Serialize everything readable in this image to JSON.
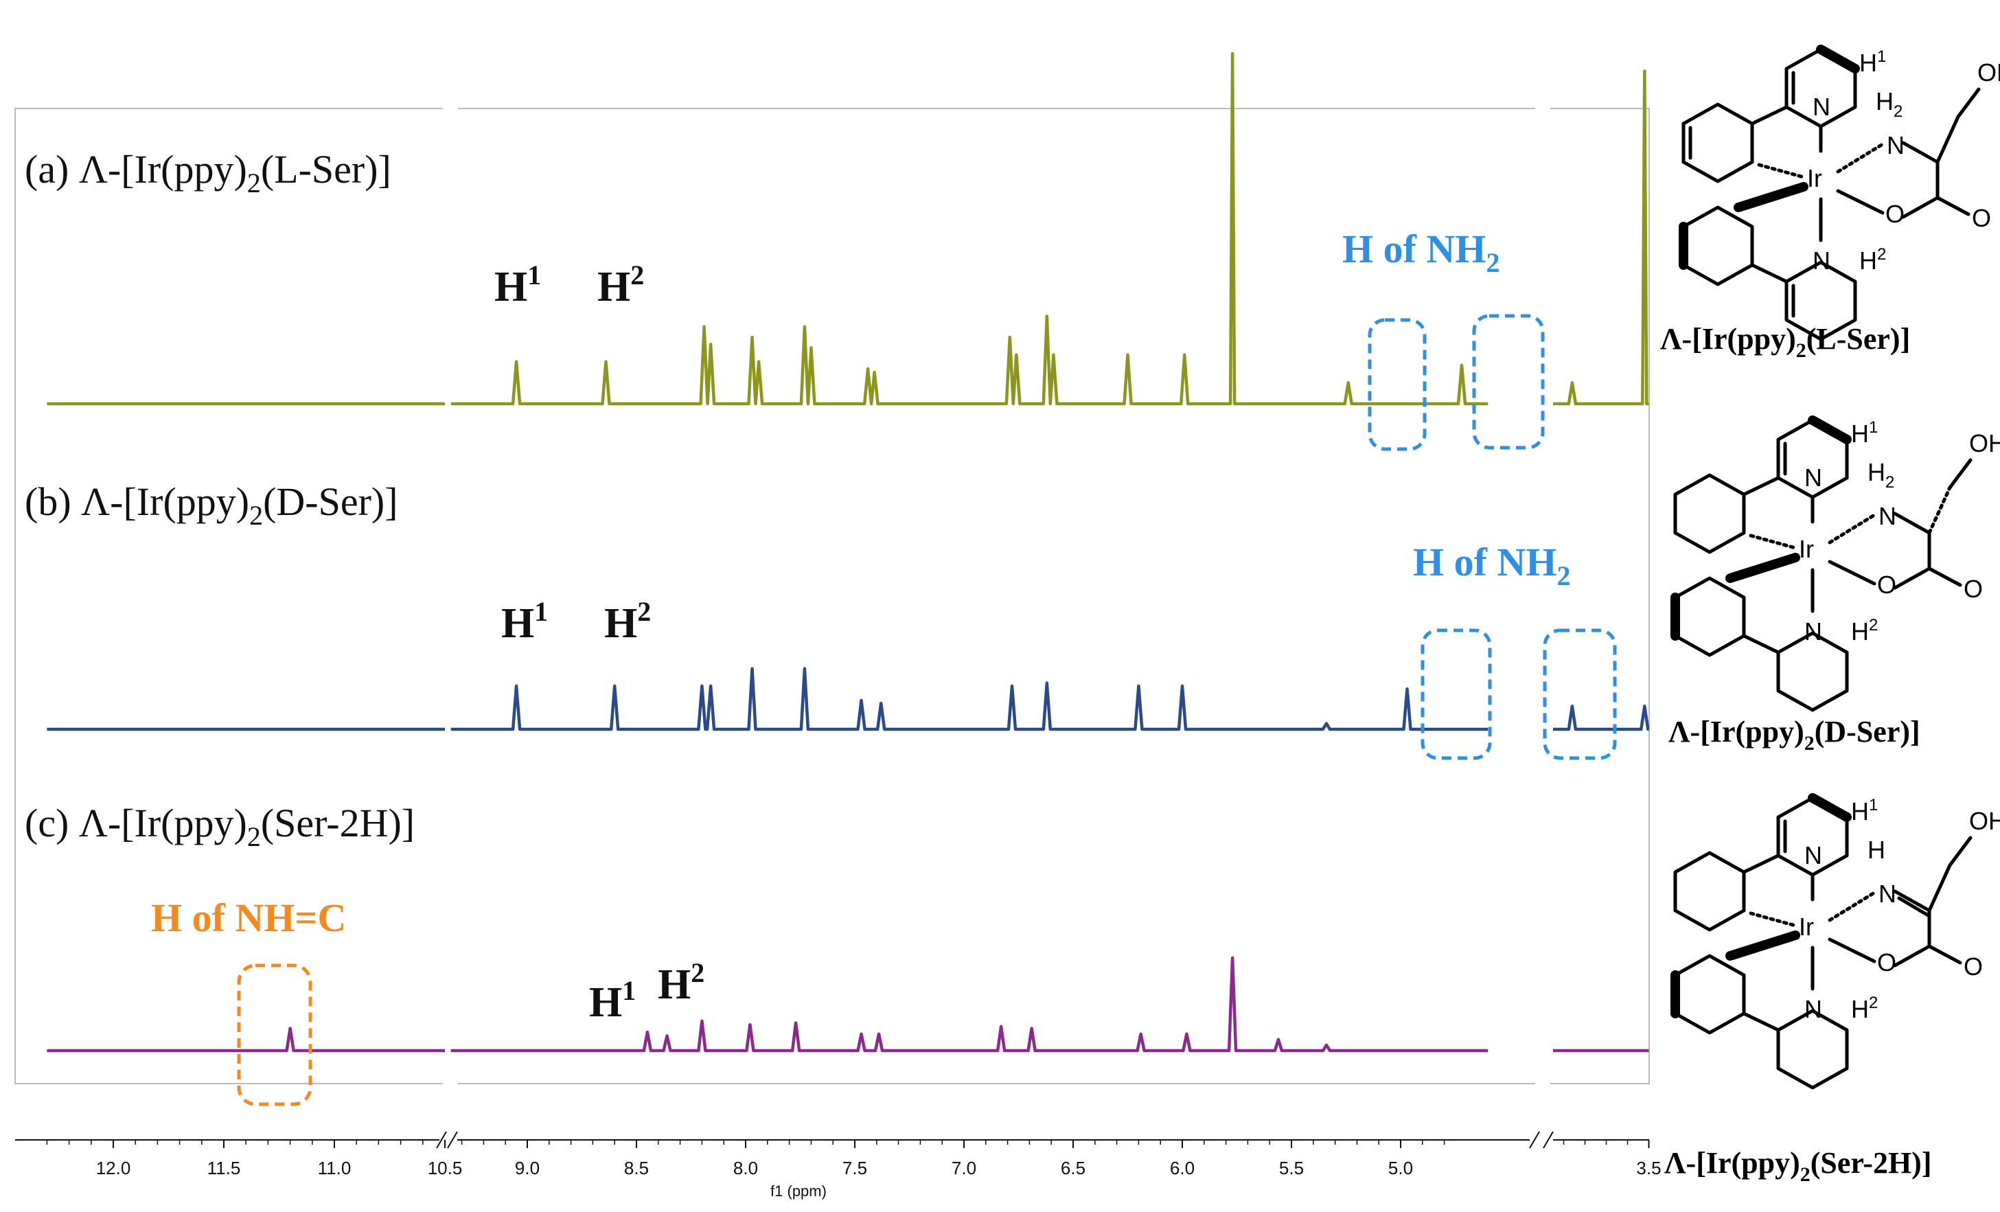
{
  "chart_data": {
    "type": "line",
    "title": "",
    "xlabel": "f1 (ppm)",
    "ylabel": "",
    "x_direction": "descending",
    "axis_breaks": [
      [
        10.5,
        9.35
      ],
      [
        4.8,
        3.6
      ]
    ],
    "xticks": [
      "12.0",
      "11.5",
      "11.0",
      "10.5",
      "9.0",
      "8.5",
      "8.0",
      "7.5",
      "7.0",
      "6.5",
      "6.0",
      "5.5",
      "5.0",
      "3.5"
    ],
    "xtick_values": [
      12.0,
      11.5,
      11.0,
      10.5,
      9.0,
      8.5,
      8.0,
      7.5,
      7.0,
      6.5,
      6.0,
      5.5,
      5.0,
      3.5
    ],
    "colors": {
      "a": "#8c961e",
      "b": "#2b4a8a",
      "c": "#8a2a8c",
      "blue_annot": "#2f8fe3",
      "orange_annot": "#f28a1f"
    },
    "series": [
      {
        "label": "(a) Λ-[Ir(ppy)₂(L-Ser)]",
        "peaks": [
          {
            "ppm": 9.05,
            "height": 0.12,
            "label": "H¹"
          },
          {
            "ppm": 8.64,
            "height": 0.12,
            "label": "H²"
          },
          {
            "ppm": 8.19,
            "height": 0.22
          },
          {
            "ppm": 8.16,
            "height": 0.17
          },
          {
            "ppm": 7.97,
            "height": 0.19
          },
          {
            "ppm": 7.94,
            "height": 0.12
          },
          {
            "ppm": 7.73,
            "height": 0.22
          },
          {
            "ppm": 7.7,
            "height": 0.16
          },
          {
            "ppm": 7.44,
            "height": 0.1
          },
          {
            "ppm": 7.41,
            "height": 0.09
          },
          {
            "ppm": 6.79,
            "height": 0.19
          },
          {
            "ppm": 6.76,
            "height": 0.14
          },
          {
            "ppm": 6.62,
            "height": 0.25
          },
          {
            "ppm": 6.59,
            "height": 0.14
          },
          {
            "ppm": 6.25,
            "height": 0.14
          },
          {
            "ppm": 5.99,
            "height": 0.14
          },
          {
            "ppm": 5.77,
            "height": 1.0
          },
          {
            "ppm": 5.24,
            "height": 0.06
          },
          {
            "ppm": 4.72,
            "height": 0.11
          },
          {
            "ppm": 3.86,
            "height": 0.06
          },
          {
            "ppm": 3.52,
            "height": 0.95
          }
        ]
      },
      {
        "label": "(b) Λ-[Ir(ppy)₂(D-Ser)]",
        "peaks": [
          {
            "ppm": 9.05,
            "height": 0.15,
            "label": "H¹"
          },
          {
            "ppm": 8.6,
            "height": 0.15,
            "label": "H²"
          },
          {
            "ppm": 8.2,
            "height": 0.15
          },
          {
            "ppm": 8.16,
            "height": 0.15
          },
          {
            "ppm": 7.97,
            "height": 0.21
          },
          {
            "ppm": 7.73,
            "height": 0.21
          },
          {
            "ppm": 7.47,
            "height": 0.1
          },
          {
            "ppm": 7.38,
            "height": 0.09
          },
          {
            "ppm": 6.78,
            "height": 0.15
          },
          {
            "ppm": 6.62,
            "height": 0.16
          },
          {
            "ppm": 6.2,
            "height": 0.15
          },
          {
            "ppm": 6.0,
            "height": 0.15
          },
          {
            "ppm": 5.34,
            "height": 0.02
          },
          {
            "ppm": 4.97,
            "height": 0.14
          },
          {
            "ppm": 3.86,
            "height": 0.08
          },
          {
            "ppm": 3.52,
            "height": 0.08
          }
        ]
      },
      {
        "label": "(c) Λ-[Ir(ppy)₂(Ser-2H)]",
        "peaks": [
          {
            "ppm": 11.2,
            "height": 0.12
          },
          {
            "ppm": 8.45,
            "height": 0.1,
            "label": "H¹"
          },
          {
            "ppm": 8.36,
            "height": 0.08,
            "label": "H²"
          },
          {
            "ppm": 8.2,
            "height": 0.16
          },
          {
            "ppm": 7.98,
            "height": 0.14
          },
          {
            "ppm": 7.77,
            "height": 0.15
          },
          {
            "ppm": 7.47,
            "height": 0.09
          },
          {
            "ppm": 7.39,
            "height": 0.09
          },
          {
            "ppm": 6.83,
            "height": 0.13
          },
          {
            "ppm": 6.69,
            "height": 0.12
          },
          {
            "ppm": 6.19,
            "height": 0.09
          },
          {
            "ppm": 5.98,
            "height": 0.09
          },
          {
            "ppm": 5.77,
            "height": 0.5
          },
          {
            "ppm": 5.56,
            "height": 0.06
          },
          {
            "ppm": 5.34,
            "height": 0.03
          }
        ]
      }
    ],
    "annotations": {
      "a_h1": "H",
      "a_h1_sup": "1",
      "a_h2": "H",
      "a_h2_sup": "2",
      "a_nh2": "H of NH",
      "a_nh2_sub": "2",
      "b_h1": "H",
      "b_h1_sup": "1",
      "b_h2": "H",
      "b_h2_sup": "2",
      "b_nh2": "H of NH",
      "b_nh2_sub": "2",
      "c_h1": "H",
      "c_h1_sup": "1",
      "c_h2": "H",
      "c_h2_sup": "2",
      "c_nhc": "H of NH=C"
    },
    "panel_labels": {
      "a_pre": "(a) Λ-[Ir(ppy)",
      "a_sub": "2",
      "a_post": "(L-Ser)]",
      "b_pre": "(b) Λ-[Ir(ppy)",
      "b_sub": "2",
      "b_post": "(D-Ser)]",
      "c_pre": "(c) Λ-[Ir(ppy)",
      "c_sub": "2",
      "c_post": "(Ser-2H)]"
    }
  },
  "structures": [
    {
      "name_pre": "Λ-[Ir(ppy)",
      "name_sub": "2",
      "name_post": "(L-Ser)]",
      "atoms": {
        "ir": "Ir",
        "n_top": "N",
        "n_bot": "N",
        "h1": "H",
        "h1_sup": "1",
        "h2": "H",
        "h2_sup": "2",
        "nh": "N",
        "nh_h": "H",
        "nh_h_sub": "2",
        "o": "O",
        "o_dbl": "O",
        "oh": "OH"
      }
    },
    {
      "name_pre": "Λ-[Ir(ppy)",
      "name_sub": "2",
      "name_post": "(D-Ser)]",
      "atoms": {
        "ir": "Ir",
        "n_top": "N",
        "n_bot": "N",
        "h1": "H",
        "h1_sup": "1",
        "h2": "H",
        "h2_sup": "2",
        "nh": "N",
        "nh_h": "H",
        "nh_h_sub": "2",
        "o": "O",
        "o_dbl": "O",
        "oh": "OH"
      }
    },
    {
      "name_pre": "Λ-[Ir(ppy)",
      "name_sub": "2",
      "name_post": "(Ser-2H)]",
      "atoms": {
        "ir": "Ir",
        "n_top": "N",
        "n_bot": "N",
        "h1": "H",
        "h1_sup": "1",
        "h2": "H",
        "h2_sup": "2",
        "nh": "N",
        "nh_h": "H",
        "nh_h_sub": "",
        "o": "O",
        "o_dbl": "O",
        "oh": "OH"
      }
    }
  ]
}
